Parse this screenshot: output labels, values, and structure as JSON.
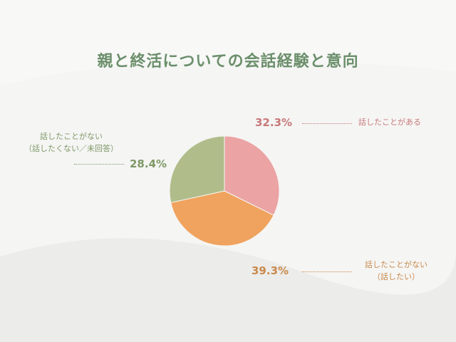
{
  "title": "親と終活についての会話経験と意向",
  "chart_data": {
    "type": "pie",
    "title": "親と終活についての会話経験と意向",
    "slices": [
      {
        "label": [
          "話したことがある"
        ],
        "value": 32.3,
        "display": "32.3%",
        "color": "#eba3a3",
        "text_color": "#c77979"
      },
      {
        "label": [
          "話したことがない",
          "（話したい）"
        ],
        "value": 39.3,
        "display": "39.3%",
        "color": "#f0a35e",
        "text_color": "#c9894c"
      },
      {
        "label": [
          "話したことがない",
          "（話したくない／未回答）"
        ],
        "value": 28.4,
        "display": "28.4%",
        "color": "#b0bd8a",
        "text_color": "#7f9966"
      }
    ],
    "start_angle_deg": 0,
    "direction": "clockwise",
    "legend": "none"
  }
}
